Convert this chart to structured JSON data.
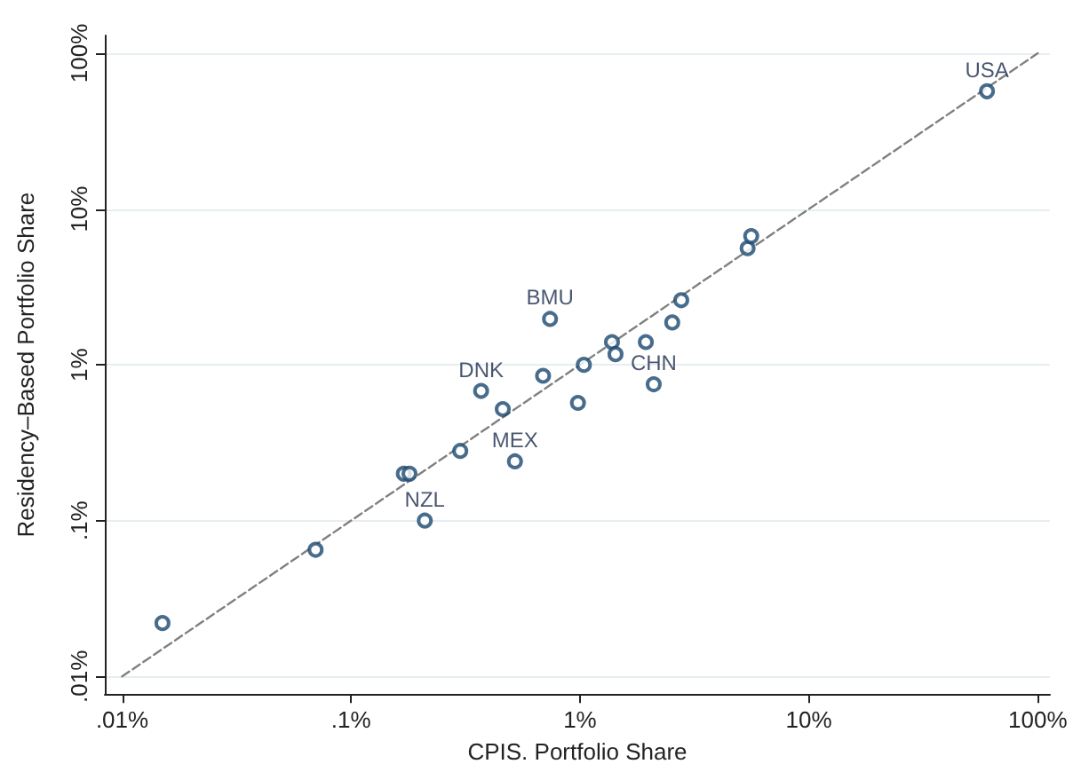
{
  "chart_data": {
    "type": "scatter",
    "xlabel": "CPIS. Portfolio Share",
    "ylabel": "Residency–Based Portfolio Share",
    "log": "xy",
    "grid": "y",
    "marker": "circle",
    "xlim": [
      0.0084,
      113
    ],
    "ylim": [
      0.0077,
      130
    ],
    "xticks": [
      {
        "value": 0.01,
        "label": ".01%"
      },
      {
        "value": 0.1,
        "label": ".1%"
      },
      {
        "value": 1,
        "label": "1%"
      },
      {
        "value": 10,
        "label": "10%"
      },
      {
        "value": 100,
        "label": "100%"
      }
    ],
    "yticks": [
      {
        "value": 0.01,
        "label": ".01%"
      },
      {
        "value": 0.1,
        "label": ".1%"
      },
      {
        "value": 1,
        "label": "1%"
      },
      {
        "value": 10,
        "label": "10%"
      },
      {
        "value": 100,
        "label": "100%"
      }
    ],
    "series": [
      {
        "color": "#1a476f",
        "x": [
          0.015,
          0.07,
          0.17,
          0.18,
          0.21,
          0.3,
          0.37,
          0.46,
          0.52,
          0.69,
          1.04,
          0.98,
          0.74,
          1.38,
          1.43,
          1.94,
          2.1,
          2.53,
          2.77,
          5.4,
          5.6,
          60
        ],
        "values": [
          0.022,
          0.065,
          0.2,
          0.2,
          0.1,
          0.28,
          0.68,
          0.52,
          0.24,
          0.85,
          1.0,
          0.57,
          1.97,
          1.4,
          1.17,
          1.4,
          0.75,
          1.87,
          2.6,
          5.6,
          6.7,
          57
        ]
      },
      {
        "type": "line",
        "color": "#808080",
        "line_style": "dashed",
        "marker": "none",
        "x": [
          0.01,
          100
        ],
        "values": [
          0.01,
          100
        ]
      }
    ],
    "annotations": [
      {
        "text": "USA",
        "x": 60,
        "y": 57
      },
      {
        "text": "BMU",
        "x": 0.74,
        "y": 1.97
      },
      {
        "text": "CHN",
        "x": 2.1,
        "y": 0.75
      },
      {
        "text": "DNK",
        "x": 0.37,
        "y": 0.68
      },
      {
        "text": "MEX",
        "x": 0.52,
        "y": 0.24
      },
      {
        "text": "NZL",
        "x": 0.21,
        "y": 0.1
      }
    ]
  }
}
